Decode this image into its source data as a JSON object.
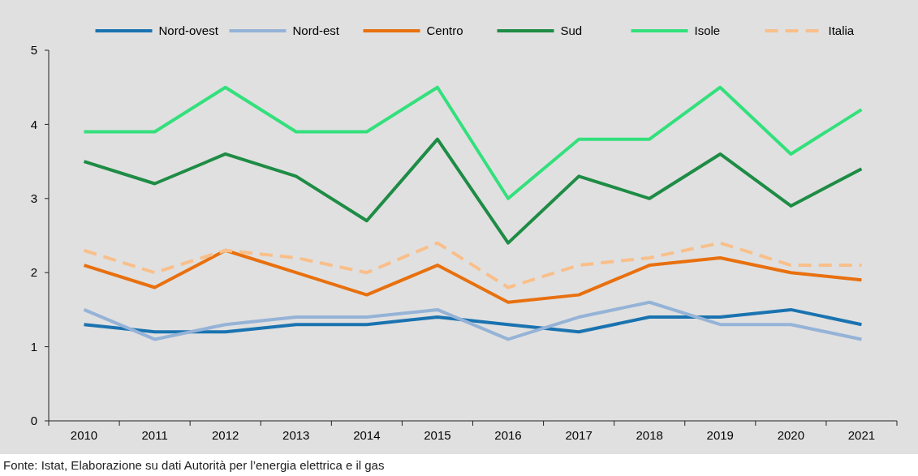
{
  "chart_data": {
    "type": "line",
    "categories": [
      "2010",
      "2011",
      "2012",
      "2013",
      "2014",
      "2015",
      "2016",
      "2017",
      "2018",
      "2019",
      "2020",
      "2021"
    ],
    "series": [
      {
        "name": "Nord-ovest",
        "color": "#1a73b0",
        "values": [
          1.3,
          1.2,
          1.2,
          1.3,
          1.3,
          1.4,
          1.3,
          1.2,
          1.4,
          1.4,
          1.5,
          1.3
        ]
      },
      {
        "name": "Nord-est",
        "color": "#95b3d7",
        "values": [
          1.5,
          1.1,
          1.3,
          1.4,
          1.4,
          1.5,
          1.1,
          1.4,
          1.6,
          1.3,
          1.3,
          1.1
        ]
      },
      {
        "name": "Centro",
        "color": "#e8700f",
        "values": [
          2.1,
          1.8,
          2.3,
          2.0,
          1.7,
          2.1,
          1.6,
          1.7,
          2.1,
          2.2,
          2.0,
          1.9
        ]
      },
      {
        "name": "Sud",
        "color": "#1e8c45",
        "values": [
          3.5,
          3.2,
          3.6,
          3.3,
          2.7,
          3.8,
          2.4,
          3.3,
          3.0,
          3.6,
          2.9,
          3.4
        ]
      },
      {
        "name": "Isole",
        "color": "#33e07c",
        "values": [
          3.9,
          3.9,
          4.5,
          3.9,
          3.9,
          4.5,
          3.0,
          3.8,
          3.8,
          4.5,
          3.6,
          4.2
        ]
      },
      {
        "name": "Italia",
        "color": "#f9bf8a",
        "line_style": "dashed",
        "values": [
          2.3,
          2.0,
          2.3,
          2.2,
          2.0,
          2.4,
          1.8,
          2.1,
          2.2,
          2.4,
          2.1,
          2.1
        ]
      }
    ],
    "ylim": [
      0,
      5
    ],
    "yticks": [
      0,
      1,
      2,
      3,
      4,
      5
    ],
    "grid": false,
    "legend": "top",
    "marker": "none",
    "line_style": "solid",
    "annotations": [
      "Fonte: Istat, Elaborazione su dati Autorità per l’energia elettrica e il gas"
    ]
  }
}
